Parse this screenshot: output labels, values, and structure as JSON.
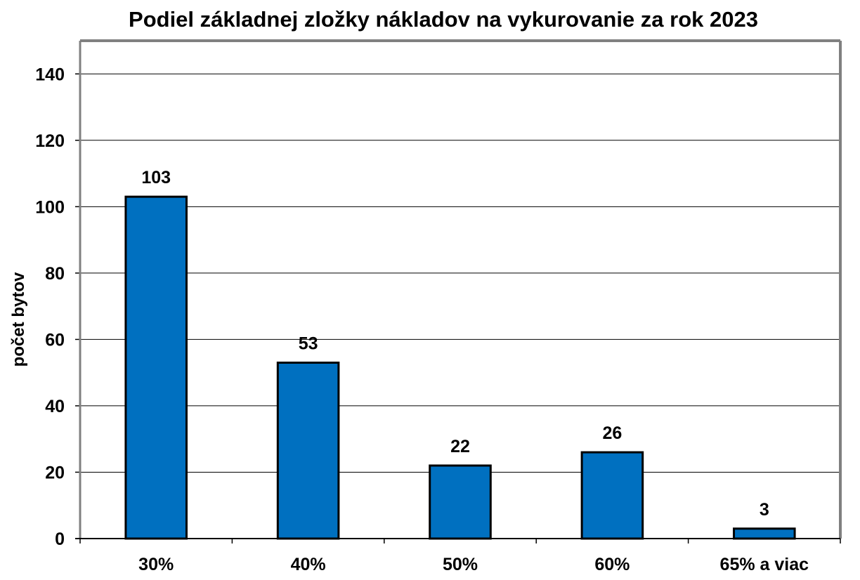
{
  "chart_data": {
    "type": "bar",
    "title": "Podiel základnej zložky nákladov na vykurovanie za rok 2023",
    "xlabel": "",
    "ylabel": "počet bytov",
    "categories": [
      "30%",
      "40%",
      "50%",
      "60%",
      "65% a viac"
    ],
    "values": [
      103,
      53,
      22,
      26,
      3
    ],
    "data_labels": [
      "103",
      "53",
      "22",
      "26",
      "3"
    ],
    "ylim": [
      0,
      150
    ],
    "yticks": [
      0,
      20,
      40,
      60,
      80,
      100,
      120,
      140
    ],
    "grid": true,
    "legend": "none",
    "bar_color": "#0070C0"
  }
}
